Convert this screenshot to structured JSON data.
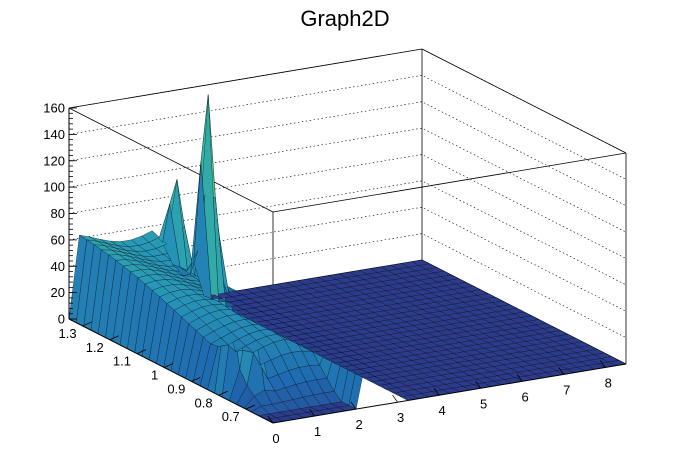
{
  "chart_data": {
    "type": "surface",
    "title": "Graph2D",
    "xlabel": "",
    "ylabel": "",
    "zlabel": "",
    "xlim": [
      0,
      8.5
    ],
    "ylim": [
      0.6,
      1.35
    ],
    "zlim": [
      0,
      160
    ],
    "x_ticks": [
      "0",
      "1",
      "2",
      "3",
      "4",
      "5",
      "6",
      "7",
      "8"
    ],
    "y_ticks": [
      "0.7",
      "0.8",
      "0.9",
      "1",
      "1.1",
      "1.2",
      "1.3"
    ],
    "z_ticks": [
      "0",
      "20",
      "40",
      "60",
      "80",
      "100",
      "120",
      "140",
      "160"
    ],
    "grid": true,
    "colormap": "viridis-like (dark blue → teal → green → yellow)",
    "colors": [
      "#2c3c8c",
      "#1f6ab0",
      "#2799b8",
      "#3dbf95",
      "#93d35a",
      "#f3df3a"
    ],
    "peaks": [
      {
        "x": 3.0,
        "y": 1.3,
        "z": 152
      },
      {
        "x": 2.8,
        "y": 1.25,
        "z": 145
      },
      {
        "x": 2.3,
        "y": 1.3,
        "z": 115
      },
      {
        "x": 0.2,
        "y": 0.8,
        "z": 58
      },
      {
        "x": 0.5,
        "y": 0.75,
        "z": 57
      }
    ],
    "plateau_level": 58,
    "flat_region": {
      "x_from": 3.2,
      "x_to": 8.5,
      "z": 0
    }
  }
}
